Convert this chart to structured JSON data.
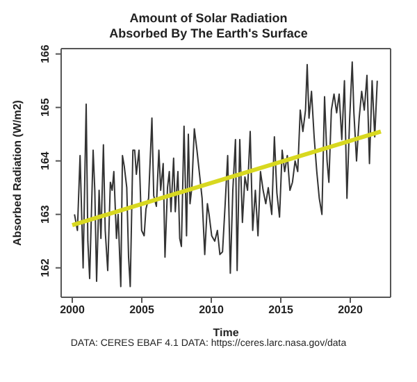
{
  "chart_data": {
    "type": "line",
    "title": "Amount of Solar Radiation\nAbsorbed By The Earth's Surface",
    "xlabel": "Time",
    "ylabel": "Absorbed Radiation (W/m2)",
    "annotations": [
      "DATA: CERES EBAF 4.1 DATA: https://ceres.larc.nasa.gov/data"
    ],
    "xlim": [
      1999.2,
      2022.9
    ],
    "xticks": [
      2000,
      2005,
      2010,
      2015,
      2020
    ],
    "ylim": [
      161.45,
      166.1
    ],
    "yticks": [
      162,
      163,
      164,
      165,
      166
    ],
    "marker": "none",
    "line_style": "solid",
    "series": [
      {
        "color": "#333333",
        "x": [
          2000.16,
          2000.37,
          2000.56,
          2000.78,
          2001.0,
          2001.12,
          2001.25,
          2001.5,
          2001.62,
          2001.75,
          2001.93,
          2002.06,
          2002.24,
          2002.37,
          2002.55,
          2002.74,
          2002.87,
          2002.99,
          2003.18,
          2003.3,
          2003.49,
          2003.61,
          2003.74,
          2003.92,
          2004.05,
          2004.17,
          2004.36,
          2004.49,
          2004.61,
          2004.8,
          2004.99,
          2005.17,
          2005.3,
          2005.49,
          2005.73,
          2005.86,
          2006.05,
          2006.23,
          2006.36,
          2006.54,
          2006.67,
          2006.85,
          2006.98,
          2007.1,
          2007.29,
          2007.41,
          2007.6,
          2007.73,
          2007.85,
          2008.04,
          2008.22,
          2008.35,
          2008.47,
          2008.6,
          2008.78,
          2008.97,
          2009.34,
          2009.53,
          2009.72,
          2009.84,
          2010.03,
          2010.25,
          2010.44,
          2010.62,
          2010.81,
          2011.0,
          2011.18,
          2011.37,
          2011.55,
          2011.74,
          2011.86,
          2012.05,
          2012.24,
          2012.42,
          2012.61,
          2012.8,
          2012.98,
          2013.17,
          2013.36,
          2013.54,
          2013.73,
          2013.92,
          2014.1,
          2014.35,
          2014.54,
          2014.72,
          2014.91,
          2015.1,
          2015.28,
          2015.47,
          2015.66,
          2015.84,
          2016.03,
          2016.22,
          2016.4,
          2016.59,
          2016.78,
          2016.9,
          2017.03,
          2017.21,
          2017.4,
          2017.59,
          2017.77,
          2017.96,
          2018.15,
          2018.33,
          2018.46,
          2018.64,
          2018.83,
          2019.02,
          2019.2,
          2019.39,
          2019.58,
          2019.76,
          2019.95,
          2020.14,
          2020.26,
          2020.45,
          2020.64,
          2020.82,
          2021.01,
          2021.2,
          2021.38,
          2021.57,
          2021.76,
          2021.94
        ],
        "values": [
          163.0,
          162.7,
          164.1,
          162.0,
          165.06,
          162.5,
          161.8,
          164.2,
          163.45,
          161.75,
          163.45,
          162.55,
          164.3,
          162.7,
          161.95,
          163.6,
          163.45,
          163.8,
          162.55,
          163.0,
          161.65,
          164.1,
          163.9,
          163.5,
          162.2,
          161.65,
          164.2,
          164.2,
          163.75,
          164.2,
          162.7,
          162.6,
          163.1,
          163.3,
          164.8,
          163.35,
          163.15,
          164.2,
          163.45,
          163.95,
          162.2,
          163.5,
          163.8,
          163.05,
          164.05,
          163.05,
          163.8,
          162.55,
          162.4,
          164.65,
          162.6,
          164.5,
          163.2,
          163.5,
          164.6,
          164.2,
          163.3,
          162.25,
          163.2,
          163.0,
          162.6,
          162.5,
          162.7,
          162.25,
          162.3,
          163.2,
          164.1,
          161.9,
          163.45,
          164.4,
          161.95,
          164.4,
          162.85,
          163.7,
          163.45,
          164.55,
          162.7,
          163.45,
          162.6,
          163.8,
          163.45,
          163.2,
          163.5,
          163.0,
          164.45,
          163.4,
          162.95,
          164.2,
          163.8,
          164.1,
          163.45,
          163.6,
          164.0,
          163.8,
          164.95,
          164.55,
          164.95,
          165.8,
          164.8,
          165.3,
          164.45,
          163.8,
          163.3,
          163.0,
          165.2,
          164.0,
          163.6,
          164.95,
          165.25,
          164.9,
          165.25,
          164.4,
          165.5,
          163.3,
          164.75,
          165.85,
          164.9,
          164.0,
          164.8,
          165.3,
          164.95,
          165.6,
          163.95,
          165.5,
          164.45,
          165.5
        ]
      },
      {
        "type": "line",
        "color": "#d8d820",
        "x": [
          2000.0,
          2022.2
        ],
        "values": [
          162.8,
          164.55
        ]
      }
    ]
  }
}
